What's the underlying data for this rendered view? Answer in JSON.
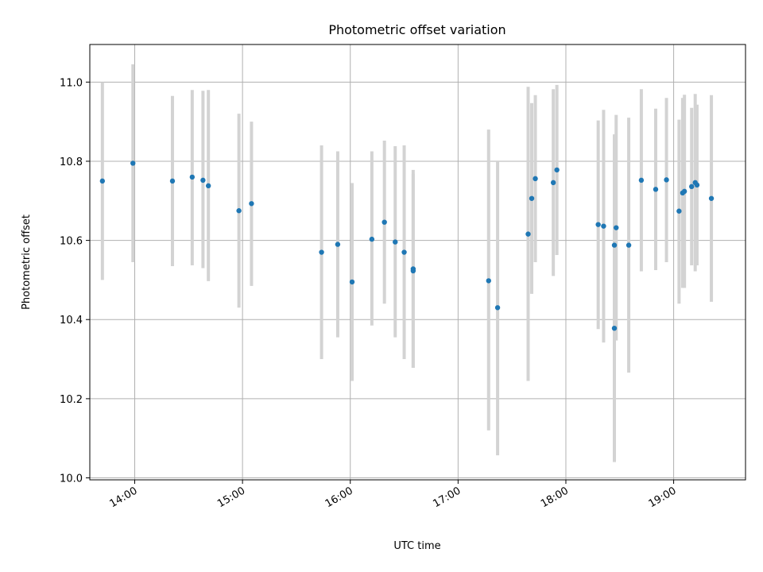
{
  "chart_data": {
    "type": "scatter",
    "title": "Photometric offset variation",
    "xlabel": "UTC time",
    "ylabel": "Photometric offset",
    "xlim": [
      "13:35",
      "19:40"
    ],
    "ylim": [
      9.995,
      11.095
    ],
    "grid": true,
    "x_ticks": [
      "14:00",
      "15:00",
      "16:00",
      "17:00",
      "18:00",
      "19:00"
    ],
    "y_ticks": [
      "10.0",
      "10.2",
      "10.4",
      "10.6",
      "10.8",
      "11.0"
    ],
    "colors": {
      "points": "#1f77b4",
      "error_bars": "#d3d3d3",
      "grid": "#b0b0b0"
    },
    "points": [
      {
        "x": "13:42",
        "y": 10.75,
        "lo": 10.5,
        "hi": 11.0
      },
      {
        "x": "13:59",
        "y": 10.795,
        "lo": 10.545,
        "hi": 11.045
      },
      {
        "x": "14:21",
        "y": 10.75,
        "lo": 10.535,
        "hi": 10.965
      },
      {
        "x": "14:32",
        "y": 10.76,
        "lo": 10.537,
        "hi": 10.98
      },
      {
        "x": "14:38",
        "y": 10.752,
        "lo": 10.53,
        "hi": 10.978
      },
      {
        "x": "14:41",
        "y": 10.738,
        "lo": 10.497,
        "hi": 10.98
      },
      {
        "x": "14:58",
        "y": 10.675,
        "lo": 10.43,
        "hi": 10.92
      },
      {
        "x": "15:05",
        "y": 10.693,
        "lo": 10.485,
        "hi": 10.9
      },
      {
        "x": "15:44",
        "y": 10.57,
        "lo": 10.3,
        "hi": 10.84
      },
      {
        "x": "15:53",
        "y": 10.59,
        "lo": 10.355,
        "hi": 10.825
      },
      {
        "x": "16:01",
        "y": 10.495,
        "lo": 10.245,
        "hi": 10.745
      },
      {
        "x": "16:12",
        "y": 10.603,
        "lo": 10.385,
        "hi": 10.825
      },
      {
        "x": "16:19",
        "y": 10.646,
        "lo": 10.44,
        "hi": 10.852
      },
      {
        "x": "16:25",
        "y": 10.596,
        "lo": 10.355,
        "hi": 10.838
      },
      {
        "x": "16:30",
        "y": 10.57,
        "lo": 10.3,
        "hi": 10.84
      },
      {
        "x": "16:35",
        "y": 10.528,
        "lo": 10.278,
        "hi": 10.778
      },
      {
        "x": "16:35",
        "y": 10.523,
        "lo": 10.278,
        "hi": 10.768
      },
      {
        "x": "17:17",
        "y": 10.498,
        "lo": 10.12,
        "hi": 10.88
      },
      {
        "x": "17:22",
        "y": 10.43,
        "lo": 10.057,
        "hi": 10.8
      },
      {
        "x": "17:39",
        "y": 10.616,
        "lo": 10.245,
        "hi": 10.988
      },
      {
        "x": "17:41",
        "y": 10.706,
        "lo": 10.465,
        "hi": 10.947
      },
      {
        "x": "17:43",
        "y": 10.756,
        "lo": 10.545,
        "hi": 10.967
      },
      {
        "x": "17:53",
        "y": 10.746,
        "lo": 10.51,
        "hi": 10.982
      },
      {
        "x": "17:55",
        "y": 10.778,
        "lo": 10.563,
        "hi": 10.993
      },
      {
        "x": "18:18",
        "y": 10.64,
        "lo": 10.376,
        "hi": 10.903
      },
      {
        "x": "18:21",
        "y": 10.636,
        "lo": 10.342,
        "hi": 10.93
      },
      {
        "x": "18:27",
        "y": 10.378,
        "lo": 10.04,
        "hi": 10.716
      },
      {
        "x": "18:27",
        "y": 10.588,
        "lo": 10.308,
        "hi": 10.868
      },
      {
        "x": "18:28",
        "y": 10.632,
        "lo": 10.347,
        "hi": 10.917
      },
      {
        "x": "18:35",
        "y": 10.588,
        "lo": 10.266,
        "hi": 10.91
      },
      {
        "x": "18:42",
        "y": 10.752,
        "lo": 10.522,
        "hi": 10.982
      },
      {
        "x": "18:50",
        "y": 10.729,
        "lo": 10.525,
        "hi": 10.933
      },
      {
        "x": "18:56",
        "y": 10.753,
        "lo": 10.545,
        "hi": 10.96
      },
      {
        "x": "19:03",
        "y": 10.674,
        "lo": 10.44,
        "hi": 10.905
      },
      {
        "x": "19:05",
        "y": 10.72,
        "lo": 10.48,
        "hi": 10.96
      },
      {
        "x": "19:06",
        "y": 10.724,
        "lo": 10.48,
        "hi": 10.968
      },
      {
        "x": "19:10",
        "y": 10.736,
        "lo": 10.537,
        "hi": 10.935
      },
      {
        "x": "19:12",
        "y": 10.746,
        "lo": 10.522,
        "hi": 10.97
      },
      {
        "x": "19:13",
        "y": 10.74,
        "lo": 10.537,
        "hi": 10.943
      },
      {
        "x": "19:21",
        "y": 10.706,
        "lo": 10.445,
        "hi": 10.967
      }
    ]
  }
}
